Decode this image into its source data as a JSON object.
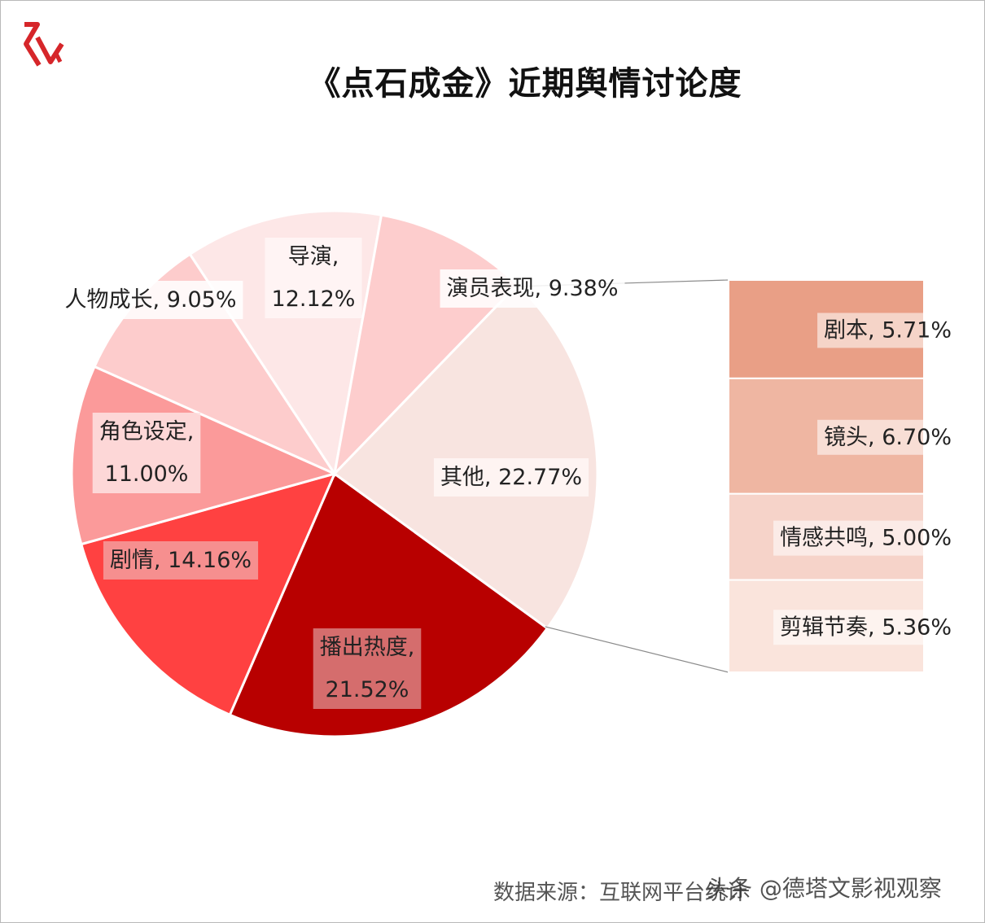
{
  "header": {
    "title": "《点石成金》近期舆情讨论度"
  },
  "chart_data": {
    "type": "pie",
    "title": "《点石成金》近期舆情讨论度",
    "slices": [
      {
        "label": "播出热度",
        "value": 21.52,
        "text": [
          "播出热度,",
          "21.52%"
        ],
        "color": "#b80000",
        "text_color": "#222222",
        "box": "#d98080"
      },
      {
        "label": "剧情",
        "value": 14.16,
        "text": [
          "剧情, 14.16%"
        ],
        "color": "#ff4141",
        "text_color": "#222222",
        "box": "#f59e9e"
      },
      {
        "label": "角色设定",
        "value": 11.0,
        "text": [
          "角色设定,",
          "11.00%"
        ],
        "color": "#fb9a9a",
        "text_color": "#222222",
        "box": "#fde2e2"
      },
      {
        "label": "人物成长",
        "value": 9.05,
        "text": [
          "人物成长, 9.05%"
        ],
        "color": "#fdcccc",
        "text_color": "#222222",
        "box": "#ffffff"
      },
      {
        "label": "导演",
        "value": 12.12,
        "text": [
          "导演,",
          "12.12%"
        ],
        "color": "#fde7e7",
        "text_color": "#222222",
        "box": "#fff6f6"
      },
      {
        "label": "演员表现",
        "value": 9.38,
        "text": [
          "演员表现, 9.38%"
        ],
        "color": "#fdcdcd",
        "text_color": "#222222",
        "box": "#ffffff"
      },
      {
        "label": "其他",
        "value": 22.77,
        "text": [
          "其他, 22.77%"
        ],
        "color": "#f8e4e0",
        "text_color": "#222222",
        "box": "#fff7f5"
      }
    ],
    "breakdown_of": "其他",
    "breakdown": [
      {
        "label": "剧本",
        "value": 5.71,
        "text": "剧本, 5.71%",
        "color": "#e99f86"
      },
      {
        "label": "镜头",
        "value": 6.7,
        "text": "镜头, 6.70%",
        "color": "#efb6a2"
      },
      {
        "label": "情感共鸣",
        "value": 5.0,
        "text": "情感共鸣, 5.00%",
        "color": "#f6d3c9"
      },
      {
        "label": "剪辑节奏",
        "value": 5.36,
        "text": "剪辑节奏, 5.36%",
        "color": "#fae4dc"
      }
    ],
    "legend": "none"
  },
  "footer": {
    "source": "数据来源：互联网平台统计",
    "watermark": "头条 @德塔文影视观察"
  },
  "colors": {
    "accent": "#d6262a",
    "title": "#111111"
  }
}
